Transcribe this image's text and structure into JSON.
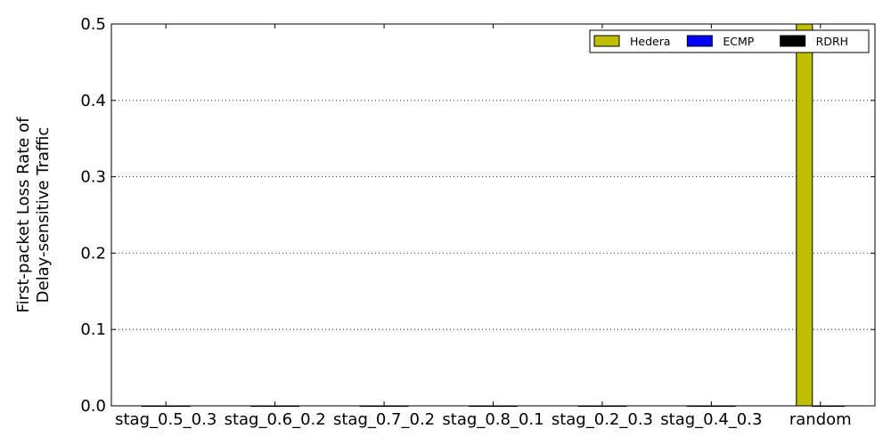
{
  "chart_data": {
    "type": "bar",
    "categories": [
      "stag_0.5_0.3",
      "stag_0.6_0.2",
      "stag_0.7_0.2",
      "stag_0.8_0.1",
      "stag_0.2_0.3",
      "stag_0.4_0.3",
      "random"
    ],
    "series": [
      {
        "name": "Hedera",
        "color": "#bfbf00",
        "values": [
          0,
          0,
          0,
          0,
          0,
          0,
          0.5
        ]
      },
      {
        "name": "ECMP",
        "color": "#0000ff",
        "values": [
          0,
          0,
          0,
          0,
          0,
          0,
          0
        ]
      },
      {
        "name": "RDRH",
        "color": "#000000",
        "values": [
          0,
          0,
          0,
          0,
          0,
          0,
          0
        ]
      }
    ],
    "ylabel_lines": [
      "First-packet Loss Rate of",
      "Delay-sensitive Traffic"
    ],
    "xlabel": "",
    "ylim": [
      0,
      0.5
    ],
    "yticks": [
      "0.0",
      "0.1",
      "0.2",
      "0.3",
      "0.4",
      "0.5"
    ],
    "grid": "horizontal-dotted",
    "legend_position": "top-right"
  }
}
